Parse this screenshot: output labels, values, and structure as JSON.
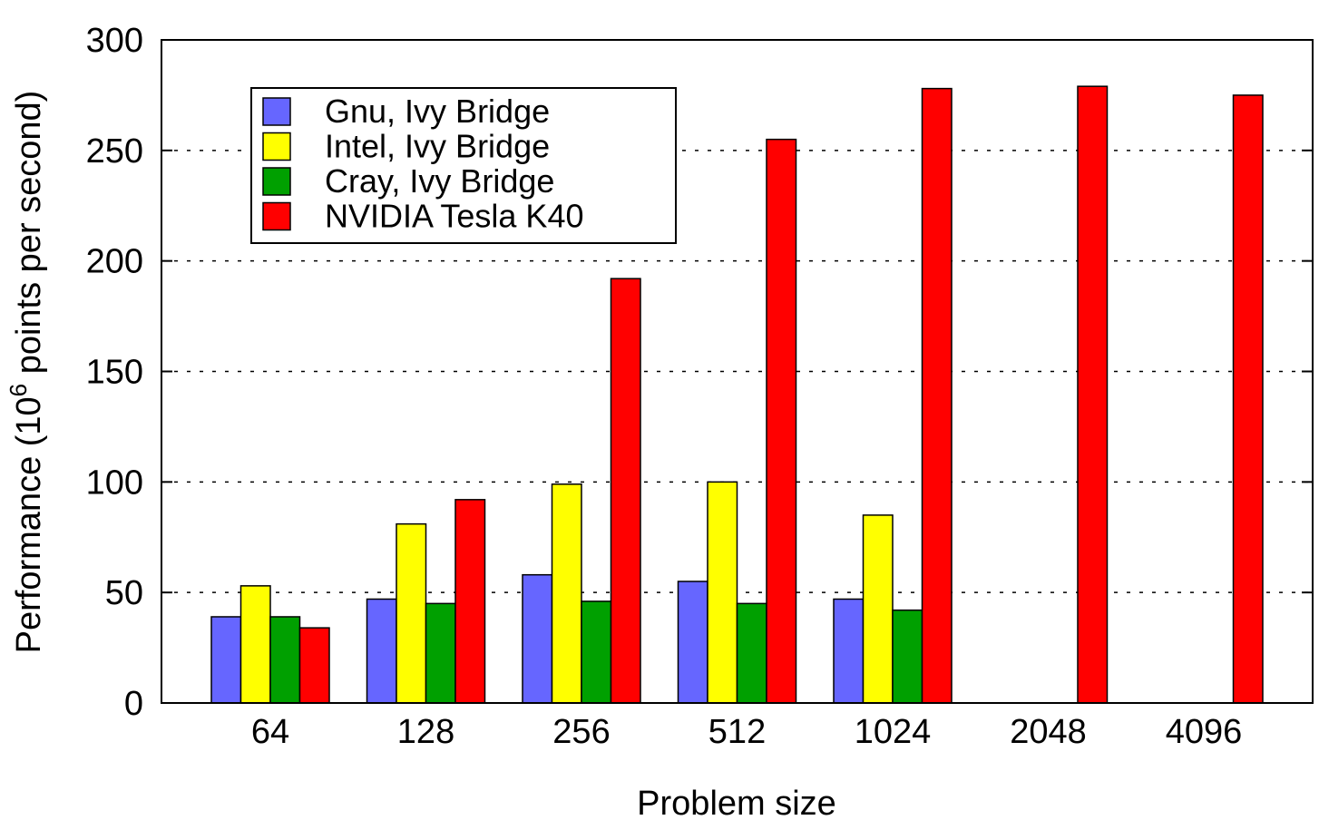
{
  "chart_data": {
    "type": "bar",
    "title": "",
    "xlabel": "Problem size",
    "ylabel_prefix": "Performance (10",
    "ylabel_exp": "6",
    "ylabel_suffix": " points per second)",
    "categories": [
      "64",
      "128",
      "256",
      "512",
      "1024",
      "2048",
      "4096"
    ],
    "ylim": [
      0,
      300
    ],
    "yticks": [
      "0",
      "50",
      "100",
      "150",
      "200",
      "250",
      "300"
    ],
    "grid": "y-dotted",
    "legend_position": "top-left",
    "series": [
      {
        "name": "Gnu, Ivy Bridge",
        "color": "#6666ff",
        "values": [
          39,
          47,
          58,
          55,
          47,
          null,
          null
        ]
      },
      {
        "name": "Intel, Ivy Bridge",
        "color": "#ffff00",
        "values": [
          53,
          81,
          99,
          100,
          85,
          null,
          null
        ]
      },
      {
        "name": "Cray, Ivy Bridge",
        "color": "#00a000",
        "values": [
          39,
          45,
          46,
          45,
          42,
          null,
          null
        ]
      },
      {
        "name": "NVIDIA Tesla K40",
        "color": "#ff0000",
        "values": [
          34,
          92,
          192,
          255,
          278,
          279,
          275
        ]
      }
    ]
  }
}
